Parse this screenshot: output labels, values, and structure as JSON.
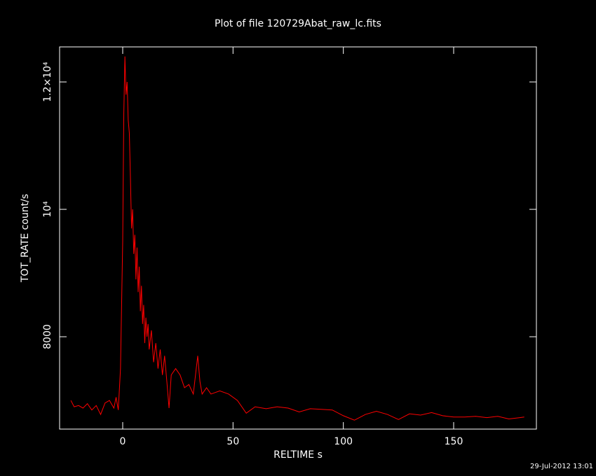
{
  "chart_data": {
    "type": "line",
    "title": "Plot of file 120729Abat_raw_lc.fits",
    "x_label": "RELTIME  s",
    "y_label": "TOT_RATE  count/s",
    "timestamp": "29-Jul-2012 13:01",
    "color": "#ff0000",
    "x": [
      -23.5,
      -22,
      -20,
      -18,
      -16,
      -14,
      -12,
      -10,
      -8,
      -6,
      -4,
      -3,
      -2,
      -1,
      0,
      0.5,
      1,
      1.5,
      2,
      2.5,
      3,
      3.5,
      4,
      4.5,
      5,
      5.5,
      6,
      6.5,
      7,
      7.5,
      8,
      8.5,
      9,
      9.5,
      10,
      10.5,
      11,
      11.5,
      12,
      13,
      14,
      15,
      16,
      17,
      18,
      19,
      20,
      21,
      22,
      24,
      26,
      28,
      30,
      32,
      34,
      35,
      36,
      38,
      40,
      44,
      48,
      52,
      56,
      60,
      65,
      70,
      75,
      80,
      85,
      90,
      95,
      100,
      105,
      110,
      115,
      120,
      125,
      130,
      135,
      140,
      145,
      150,
      155,
      160,
      165,
      170,
      175,
      180,
      182
    ],
    "values": [
      7000,
      6900,
      6920,
      6880,
      6950,
      6850,
      6920,
      6780,
      6960,
      7000,
      6880,
      7050,
      6850,
      7500,
      9500,
      11500,
      12400,
      11800,
      12000,
      11400,
      11200,
      10500,
      9700,
      10000,
      9300,
      9600,
      8900,
      9400,
      8700,
      9100,
      8400,
      8800,
      8200,
      8500,
      7900,
      8300,
      8000,
      8200,
      7800,
      8100,
      7600,
      7900,
      7500,
      7800,
      7400,
      7700,
      7300,
      6880,
      7400,
      7500,
      7400,
      7200,
      7250,
      7100,
      7700,
      7300,
      7100,
      7200,
      7100,
      7150,
      7100,
      7000,
      6800,
      6900,
      6870,
      6900,
      6880,
      6820,
      6870,
      6860,
      6850,
      6760,
      6690,
      6780,
      6830,
      6780,
      6700,
      6790,
      6770,
      6810,
      6760,
      6740,
      6740,
      6750,
      6730,
      6750,
      6710,
      6730,
      6740
    ],
    "xlim": [
      -28.6,
      187.5
    ],
    "xticks": [
      0,
      50,
      100,
      150
    ],
    "ylim": [
      6550,
      12550
    ],
    "yticks": [
      8000,
      {
        "value": 10000,
        "label": "10⁴"
      },
      {
        "value": 12000,
        "label": "1.2×10⁴"
      }
    ]
  }
}
